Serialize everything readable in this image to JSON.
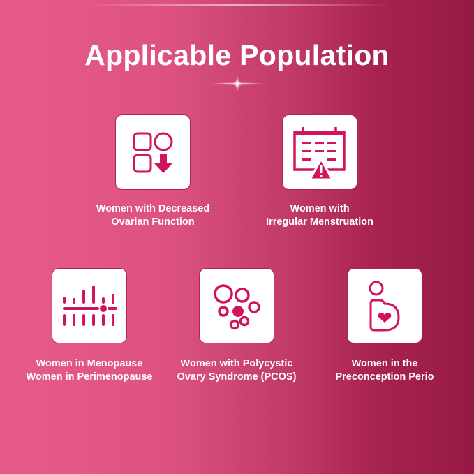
{
  "title": "Applicable Population",
  "colors": {
    "icon": "#d2145f",
    "background_left": "#e65a8c",
    "background_right": "#951a44"
  },
  "items": [
    {
      "icon": "shapes-arrow-down-icon",
      "line1": "Women with Decreased",
      "line2": "Ovarian Function"
    },
    {
      "icon": "calendar-warning-icon",
      "line1": "Women with",
      "line2": "Irregular Menstruation"
    },
    {
      "icon": "hormone-levels-icon",
      "line1": "Women in Menopause",
      "line2": "Women in Perimenopause"
    },
    {
      "icon": "ovary-follicles-icon",
      "line1": "Women with Polycystic",
      "line2": "Ovary Syndrome (PCOS)"
    },
    {
      "icon": "pregnant-heart-icon",
      "line1": "Women in the",
      "line2": "Preconception Perio"
    }
  ]
}
